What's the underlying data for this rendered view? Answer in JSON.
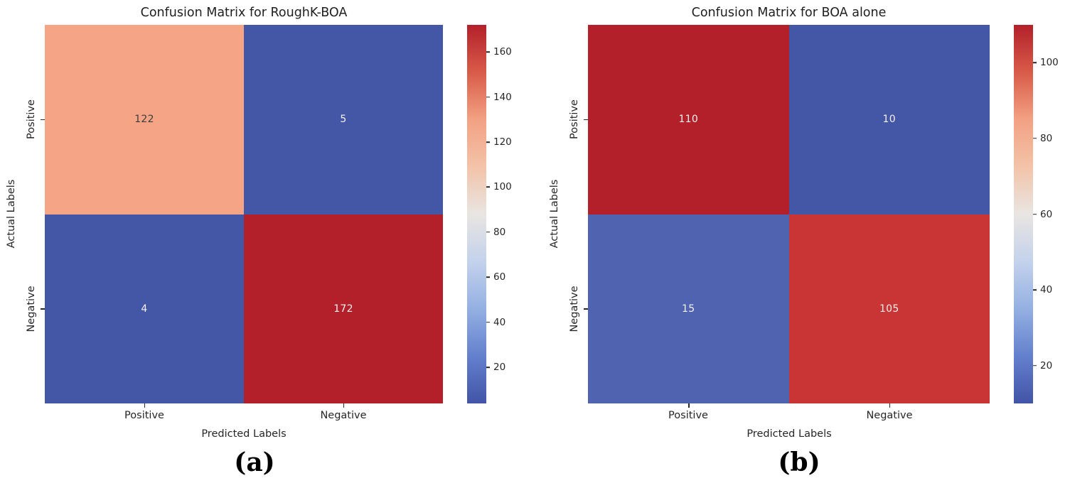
{
  "figure": {
    "background": "#ffffff",
    "text_color": "#1f1f1f"
  },
  "chart_data": [
    {
      "type": "heatmap",
      "title": "Confusion Matrix for RoughK-BOA",
      "xlabel": "Predicted Labels",
      "ylabel": "Actual Labels",
      "x_ticklabels": [
        "Positive",
        "Negative"
      ],
      "y_ticklabels": [
        "Positive",
        "Negative"
      ],
      "rows": [
        [
          122,
          5
        ],
        [
          4,
          172
        ]
      ],
      "cells": [
        {
          "actual": "Positive",
          "predicted": "Positive",
          "value": "122",
          "bg": "#f5a585",
          "fg": "#3c3c3c"
        },
        {
          "actual": "Positive",
          "predicted": "Negative",
          "value": "5",
          "bg": "#4456a6",
          "fg": "#f6f2f1"
        },
        {
          "actual": "Negative",
          "predicted": "Positive",
          "value": "4",
          "bg": "#4456a6",
          "fg": "#f6f2f1"
        },
        {
          "actual": "Negative",
          "predicted": "Negative",
          "value": "172",
          "bg": "#b3202a",
          "fg": "#f6f2f1"
        }
      ],
      "colormap": "coolwarm",
      "colorbar": {
        "vmin": 4,
        "vmax": 172,
        "ticks": [
          20,
          40,
          60,
          80,
          100,
          120,
          140,
          160
        ],
        "gradient_stops": [
          "#4254a7 0%",
          "#6380cd 12.5%",
          "#94b0e2 25%",
          "#c4d2ec 37.5%",
          "#e9e5e2 50%",
          "#f3c3a8 62.5%",
          "#f3a183 75%",
          "#d85b49 87.5%",
          "#b3202a 100%"
        ]
      },
      "caption": "(a)"
    },
    {
      "type": "heatmap",
      "title": "Confusion Matrix for BOA alone",
      "xlabel": "Predicted Labels",
      "ylabel": "Actual Labels",
      "x_ticklabels": [
        "Positive",
        "Negative"
      ],
      "y_ticklabels": [
        "Positive",
        "Negative"
      ],
      "rows": [
        [
          110,
          10
        ],
        [
          15,
          105
        ]
      ],
      "cells": [
        {
          "actual": "Positive",
          "predicted": "Positive",
          "value": "110",
          "bg": "#b3202a",
          "fg": "#f6f2f1"
        },
        {
          "actual": "Positive",
          "predicted": "Negative",
          "value": "10",
          "bg": "#4456a6",
          "fg": "#f6f2f1"
        },
        {
          "actual": "Negative",
          "predicted": "Positive",
          "value": "15",
          "bg": "#5063b0",
          "fg": "#f6f2f1"
        },
        {
          "actual": "Negative",
          "predicted": "Negative",
          "value": "105",
          "bg": "#c93434",
          "fg": "#f6f2f1"
        }
      ],
      "colormap": "coolwarm",
      "colorbar": {
        "vmin": 10,
        "vmax": 110,
        "ticks": [
          20,
          40,
          60,
          80,
          100
        ],
        "gradient_stops": [
          "#4254a7 0%",
          "#6380cd 12.5%",
          "#94b0e2 25%",
          "#c4d2ec 37.5%",
          "#e9e5e2 50%",
          "#f3c3a8 62.5%",
          "#f3a183 75%",
          "#d85b49 87.5%",
          "#b3202a 100%"
        ]
      },
      "caption": "(b)"
    }
  ]
}
